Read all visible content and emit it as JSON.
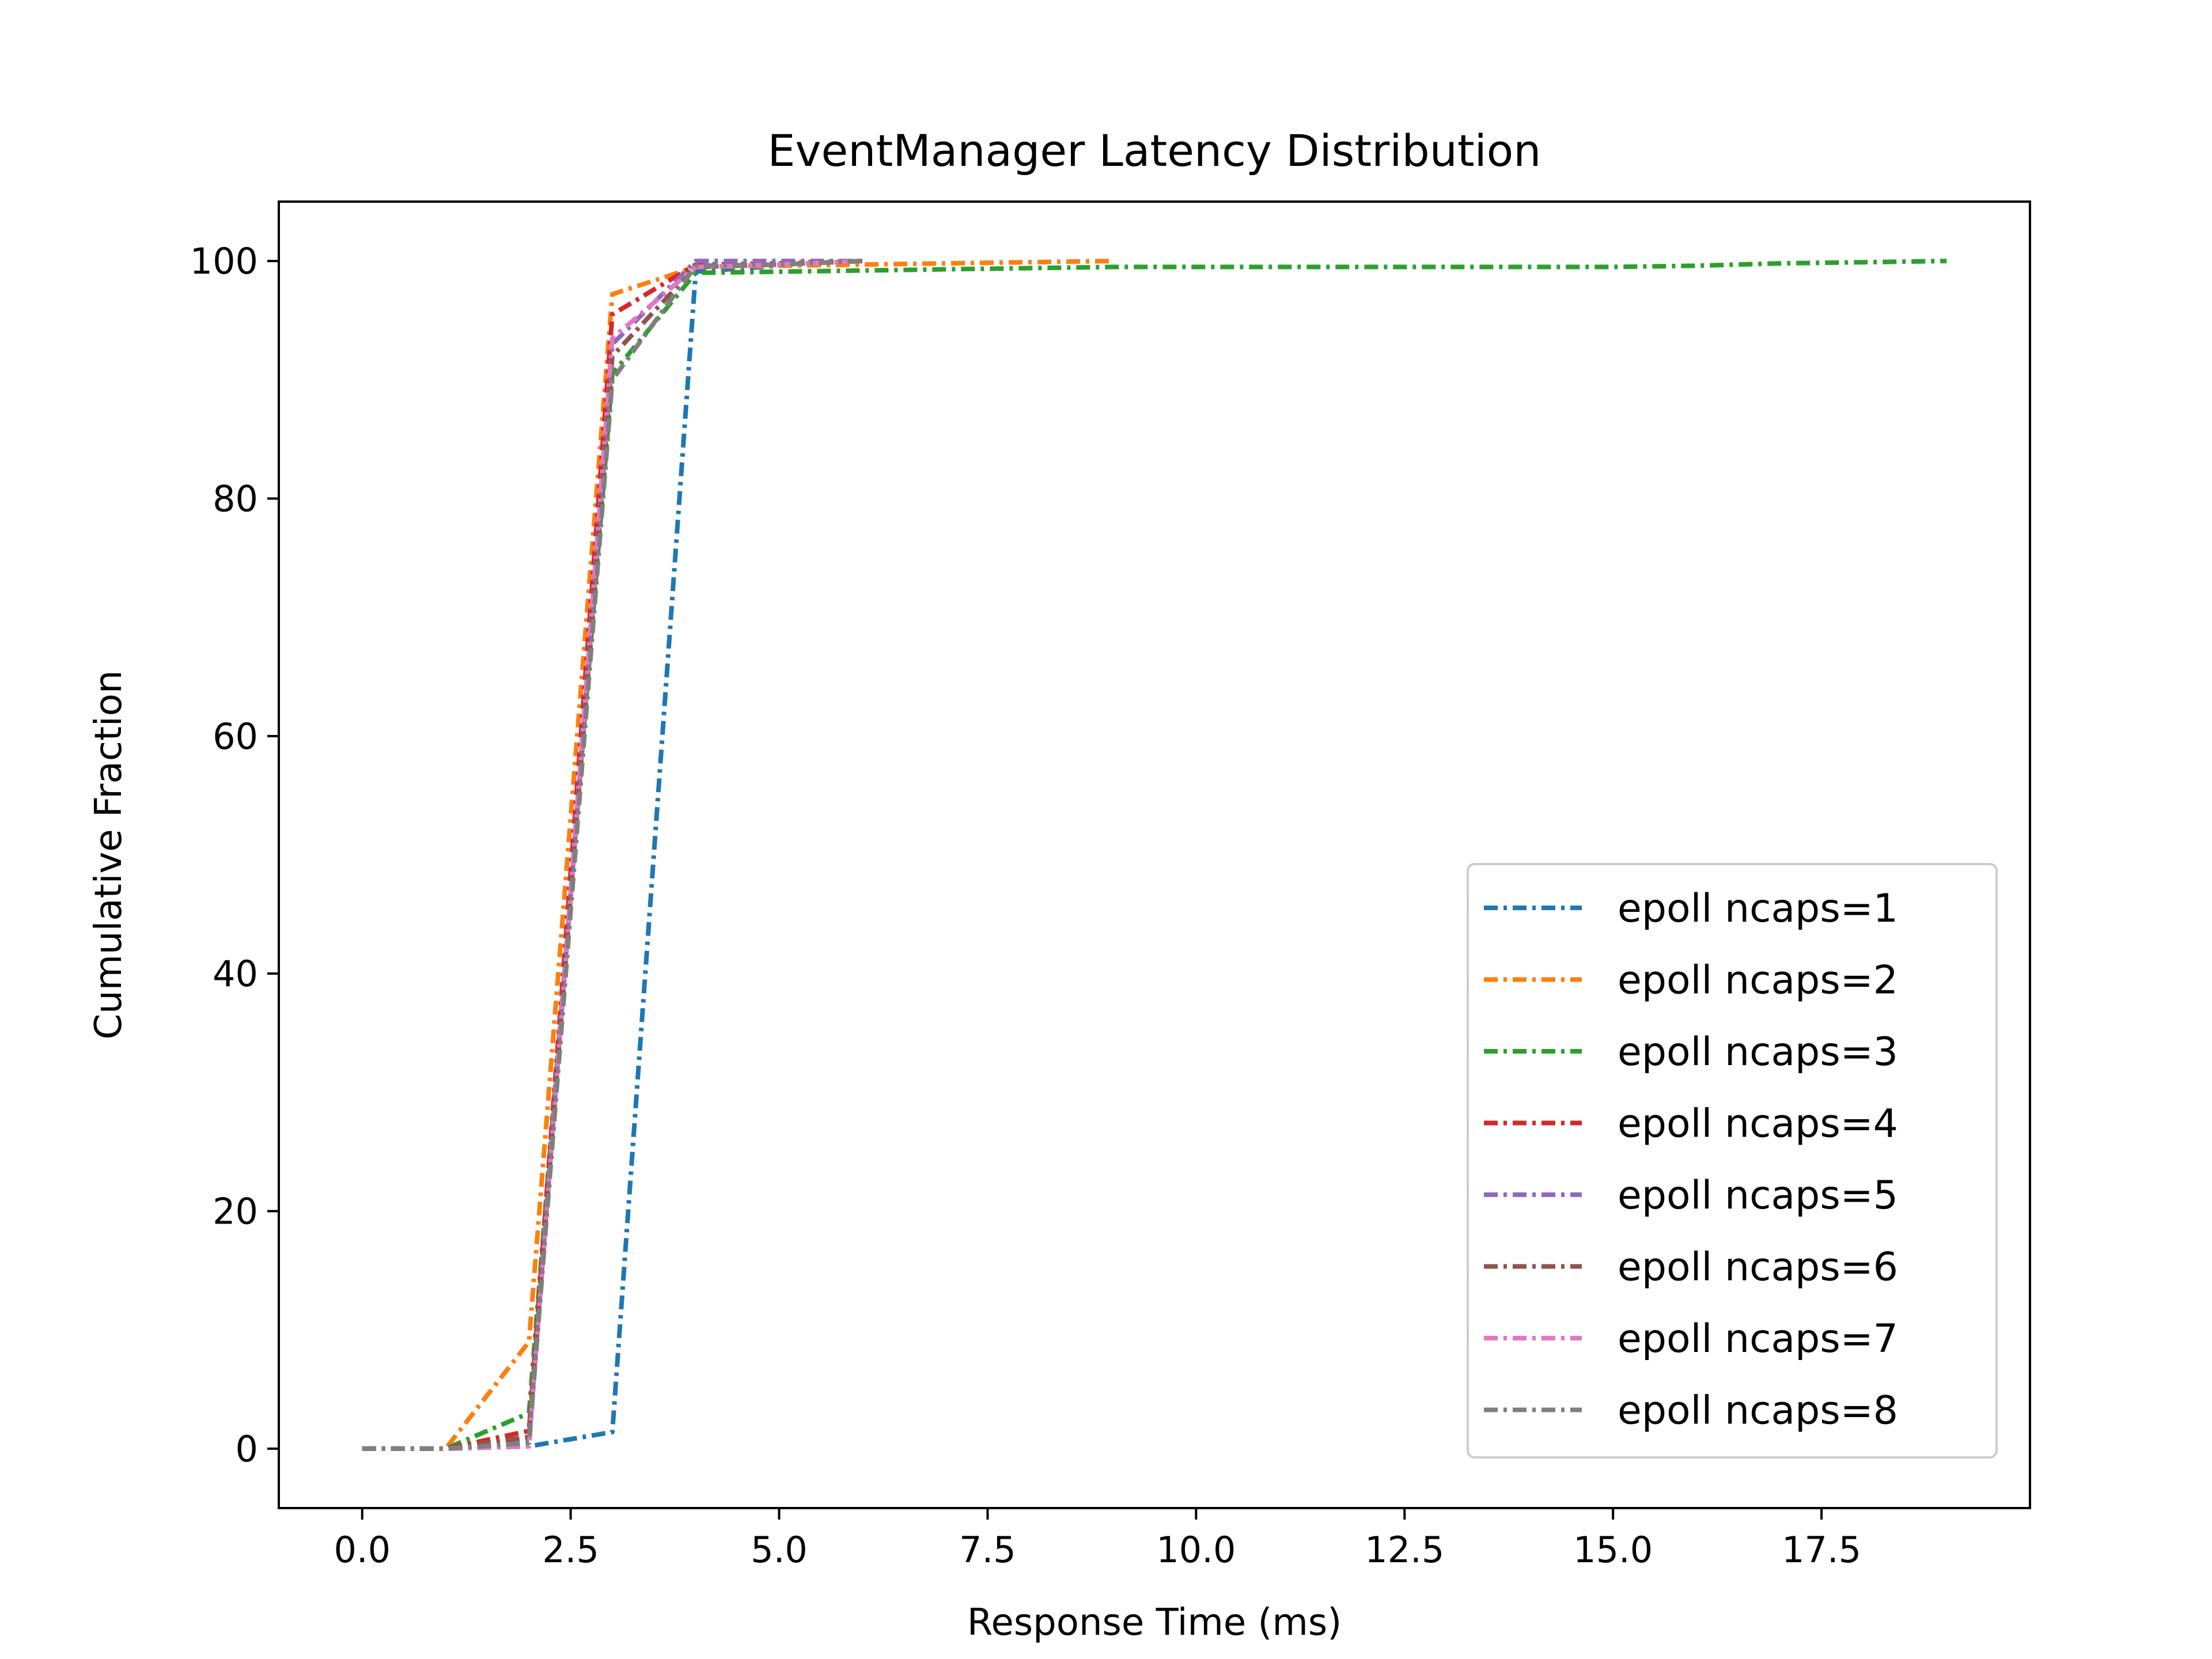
{
  "chart_data": {
    "type": "line",
    "title": "EventManager Latency Distribution",
    "xlabel": "Response Time (ms)",
    "ylabel": "Cumulative Fraction",
    "xlim": [
      -1,
      20
    ],
    "ylim": [
      -5,
      105
    ],
    "xticks": [
      "0.0",
      "2.5",
      "5.0",
      "7.5",
      "10.0",
      "12.5",
      "15.0",
      "17.5"
    ],
    "yticks": [
      "0",
      "20",
      "40",
      "60",
      "80",
      "100"
    ],
    "legend_position": "lower-right",
    "grid": false,
    "line_style": "dash-dot",
    "series": [
      {
        "name": "epoll ncaps=1",
        "color": "#1f77b4",
        "x": [
          0,
          1,
          2,
          3,
          4,
          5,
          6
        ],
        "y": [
          0,
          0,
          0.2,
          1.4,
          99.1,
          99.6,
          100
        ]
      },
      {
        "name": "epoll ncaps=2",
        "color": "#ff7f0e",
        "x": [
          0,
          1,
          2,
          3,
          4,
          5,
          6,
          7,
          8,
          9
        ],
        "y": [
          0,
          0,
          9,
          97.2,
          99.5,
          99.6,
          99.7,
          99.8,
          99.9,
          100
        ]
      },
      {
        "name": "epoll ncaps=3",
        "color": "#2ca02c",
        "x": [
          0,
          1,
          2,
          3,
          4,
          5,
          6,
          7,
          8,
          9,
          10,
          11,
          12,
          13,
          14,
          15,
          16,
          17,
          18,
          19
        ],
        "y": [
          0,
          0,
          3,
          90.5,
          99,
          99.1,
          99.2,
          99.3,
          99.4,
          99.5,
          99.5,
          99.5,
          99.5,
          99.5,
          99.5,
          99.5,
          99.6,
          99.8,
          99.9,
          100
        ]
      },
      {
        "name": "epoll ncaps=4",
        "color": "#d62728",
        "x": [
          0,
          1,
          2,
          3,
          4,
          5,
          6
        ],
        "y": [
          0,
          0,
          1.5,
          95.5,
          99.7,
          99.8,
          100
        ]
      },
      {
        "name": "epoll ncaps=5",
        "color": "#9467bd",
        "x": [
          0,
          1,
          2,
          3,
          4,
          5,
          6
        ],
        "y": [
          0,
          0,
          0.8,
          93,
          100,
          100,
          100
        ]
      },
      {
        "name": "epoll ncaps=6",
        "color": "#8c564b",
        "x": [
          0,
          1,
          2,
          3,
          4,
          5,
          6
        ],
        "y": [
          0,
          0,
          1,
          92,
          99.5,
          99.7,
          100
        ]
      },
      {
        "name": "epoll ncaps=7",
        "color": "#e377c2",
        "x": [
          0,
          1,
          2,
          3,
          4,
          5,
          6
        ],
        "y": [
          0,
          0,
          0.2,
          93.5,
          99.5,
          99.7,
          100
        ]
      },
      {
        "name": "epoll ncaps=8",
        "color": "#7f7f7f",
        "x": [
          0,
          1,
          2,
          3,
          4,
          5,
          6
        ],
        "y": [
          0,
          0,
          0.5,
          90,
          99.6,
          99.7,
          100
        ]
      }
    ]
  }
}
